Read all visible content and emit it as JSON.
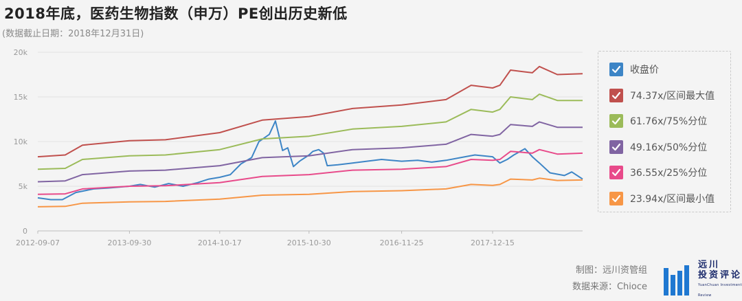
{
  "header": {
    "title": "2018年底，医药生物指数（申万）PE创出历史新低",
    "subtitle": "(数据截止日期：2018年12月31日)"
  },
  "footer": {
    "made_by": "制图：远川资管组",
    "source": "数据来源：Chioce",
    "brand_name_line1": "远川",
    "brand_name_line2": "投资评论",
    "brand_en": "YuanChuan Investment Review"
  },
  "chart_data": {
    "type": "line",
    "title": "2018年底，医药生物指数（申万）PE创出历史新低",
    "xlabel": "",
    "ylabel": "",
    "ylim": [
      0,
      20000
    ],
    "y_ticks": [
      0,
      5000,
      10000,
      15000,
      20000
    ],
    "y_tick_labels": [
      "0",
      "5k",
      "10k",
      "15k",
      "20k"
    ],
    "x_tick_labels": [
      "2012-09-07",
      "2013-09-30",
      "2014-10-17",
      "2015-10-30",
      "2016-11-25",
      "2017-12-15"
    ],
    "x_range": [
      "2012-09-07",
      "2018-12-31"
    ],
    "grid": "horizontal",
    "legend_position": "right",
    "series": [
      {
        "name": "收盘价",
        "color": "#3d85c6",
        "points": [
          [
            "2012-09-07",
            3700
          ],
          [
            "2012-11-01",
            3500
          ],
          [
            "2012-12-20",
            3500
          ],
          [
            "2013-02-15",
            4300
          ],
          [
            "2013-05-01",
            4700
          ],
          [
            "2013-07-01",
            4800
          ],
          [
            "2013-09-30",
            5000
          ],
          [
            "2013-11-15",
            5200
          ],
          [
            "2014-01-15",
            4900
          ],
          [
            "2014-03-15",
            5300
          ],
          [
            "2014-05-15",
            5000
          ],
          [
            "2014-07-15",
            5400
          ],
          [
            "2014-09-01",
            5800
          ],
          [
            "2014-10-17",
            6000
          ],
          [
            "2014-12-01",
            6300
          ],
          [
            "2015-01-15",
            7500
          ],
          [
            "2015-03-01",
            8200
          ],
          [
            "2015-04-01",
            10000
          ],
          [
            "2015-05-15",
            10800
          ],
          [
            "2015-06-10",
            12300
          ],
          [
            "2015-07-10",
            9000
          ],
          [
            "2015-08-01",
            9300
          ],
          [
            "2015-08-25",
            7200
          ],
          [
            "2015-09-20",
            7800
          ],
          [
            "2015-10-30",
            8500
          ],
          [
            "2015-11-15",
            8900
          ],
          [
            "2015-12-10",
            9100
          ],
          [
            "2015-12-31",
            8700
          ],
          [
            "2016-01-15",
            7300
          ],
          [
            "2016-03-01",
            7400
          ],
          [
            "2016-05-01",
            7600
          ],
          [
            "2016-07-01",
            7800
          ],
          [
            "2016-09-01",
            8000
          ],
          [
            "2016-11-25",
            7800
          ],
          [
            "2017-02-01",
            7900
          ],
          [
            "2017-04-01",
            7700
          ],
          [
            "2017-06-01",
            7900
          ],
          [
            "2017-08-01",
            8200
          ],
          [
            "2017-10-01",
            8500
          ],
          [
            "2017-12-15",
            8300
          ],
          [
            "2018-01-15",
            7600
          ],
          [
            "2018-02-15",
            8000
          ],
          [
            "2018-03-15",
            8500
          ],
          [
            "2018-05-01",
            9200
          ],
          [
            "2018-06-01",
            8300
          ],
          [
            "2018-07-01",
            7600
          ],
          [
            "2018-08-15",
            6500
          ],
          [
            "2018-10-15",
            6200
          ],
          [
            "2018-11-15",
            6600
          ],
          [
            "2018-12-31",
            5800
          ]
        ]
      },
      {
        "name": "74.37x/区间最大值",
        "color": "#c0504d",
        "points": [
          [
            "2012-09-07",
            8300
          ],
          [
            "2013-01-01",
            8500
          ],
          [
            "2013-03-15",
            9600
          ],
          [
            "2013-09-30",
            10100
          ],
          [
            "2014-03-01",
            10200
          ],
          [
            "2014-10-17",
            11000
          ],
          [
            "2015-04-15",
            12400
          ],
          [
            "2015-10-30",
            12800
          ],
          [
            "2016-05-01",
            13700
          ],
          [
            "2016-11-25",
            14100
          ],
          [
            "2017-06-01",
            14700
          ],
          [
            "2017-09-15",
            16300
          ],
          [
            "2017-12-15",
            16000
          ],
          [
            "2018-01-15",
            16300
          ],
          [
            "2018-03-01",
            18000
          ],
          [
            "2018-06-01",
            17700
          ],
          [
            "2018-07-01",
            18400
          ],
          [
            "2018-09-15",
            17500
          ],
          [
            "2018-12-31",
            17600
          ]
        ]
      },
      {
        "name": "61.76x/75%分位",
        "color": "#9bbb59",
        "points": [
          [
            "2012-09-07",
            6900
          ],
          [
            "2013-01-01",
            7000
          ],
          [
            "2013-03-15",
            8000
          ],
          [
            "2013-09-30",
            8400
          ],
          [
            "2014-03-01",
            8500
          ],
          [
            "2014-10-17",
            9100
          ],
          [
            "2015-04-15",
            10300
          ],
          [
            "2015-10-30",
            10600
          ],
          [
            "2016-05-01",
            11400
          ],
          [
            "2016-11-25",
            11700
          ],
          [
            "2017-06-01",
            12200
          ],
          [
            "2017-09-15",
            13600
          ],
          [
            "2017-12-15",
            13300
          ],
          [
            "2018-01-15",
            13600
          ],
          [
            "2018-03-01",
            15000
          ],
          [
            "2018-06-01",
            14700
          ],
          [
            "2018-07-01",
            15300
          ],
          [
            "2018-09-15",
            14600
          ],
          [
            "2018-12-31",
            14600
          ]
        ]
      },
      {
        "name": "49.16x/50%分位",
        "color": "#8064a2",
        "points": [
          [
            "2012-09-07",
            5500
          ],
          [
            "2013-01-01",
            5600
          ],
          [
            "2013-03-15",
            6300
          ],
          [
            "2013-09-30",
            6700
          ],
          [
            "2014-03-01",
            6800
          ],
          [
            "2014-10-17",
            7300
          ],
          [
            "2015-04-15",
            8200
          ],
          [
            "2015-10-30",
            8400
          ],
          [
            "2016-05-01",
            9100
          ],
          [
            "2016-11-25",
            9300
          ],
          [
            "2017-06-01",
            9700
          ],
          [
            "2017-09-15",
            10800
          ],
          [
            "2017-12-15",
            10600
          ],
          [
            "2018-01-15",
            10800
          ],
          [
            "2018-03-01",
            11900
          ],
          [
            "2018-06-01",
            11700
          ],
          [
            "2018-07-01",
            12200
          ],
          [
            "2018-09-15",
            11600
          ],
          [
            "2018-12-31",
            11600
          ]
        ]
      },
      {
        "name": "36.55x/25%分位",
        "color": "#e84a8a",
        "points": [
          [
            "2012-09-07",
            4100
          ],
          [
            "2013-01-01",
            4150
          ],
          [
            "2013-03-15",
            4700
          ],
          [
            "2013-09-30",
            5000
          ],
          [
            "2014-03-01",
            5050
          ],
          [
            "2014-10-17",
            5400
          ],
          [
            "2015-04-15",
            6100
          ],
          [
            "2015-10-30",
            6300
          ],
          [
            "2016-05-01",
            6800
          ],
          [
            "2016-11-25",
            6900
          ],
          [
            "2017-06-01",
            7200
          ],
          [
            "2017-09-15",
            8000
          ],
          [
            "2017-12-15",
            7900
          ],
          [
            "2018-01-15",
            8000
          ],
          [
            "2018-03-01",
            8900
          ],
          [
            "2018-06-01",
            8700
          ],
          [
            "2018-07-01",
            9100
          ],
          [
            "2018-09-15",
            8600
          ],
          [
            "2018-12-31",
            8700
          ]
        ]
      },
      {
        "name": "23.94x/区间最小值",
        "color": "#f79646",
        "points": [
          [
            "2012-09-07",
            2700
          ],
          [
            "2013-01-01",
            2750
          ],
          [
            "2013-03-15",
            3100
          ],
          [
            "2013-09-30",
            3250
          ],
          [
            "2014-03-01",
            3300
          ],
          [
            "2014-10-17",
            3550
          ],
          [
            "2015-04-15",
            4000
          ],
          [
            "2015-10-30",
            4100
          ],
          [
            "2016-05-01",
            4400
          ],
          [
            "2016-11-25",
            4500
          ],
          [
            "2017-06-01",
            4700
          ],
          [
            "2017-09-15",
            5200
          ],
          [
            "2017-12-15",
            5100
          ],
          [
            "2018-01-15",
            5200
          ],
          [
            "2018-03-01",
            5800
          ],
          [
            "2018-06-01",
            5700
          ],
          [
            "2018-07-01",
            5900
          ],
          [
            "2018-09-15",
            5650
          ],
          [
            "2018-12-31",
            5700
          ]
        ]
      }
    ]
  }
}
